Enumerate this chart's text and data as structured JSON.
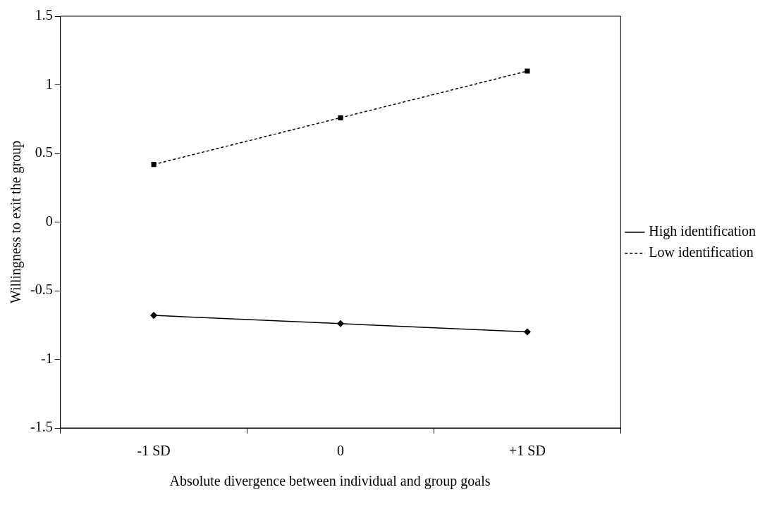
{
  "chart_data": {
    "type": "line",
    "xlabel": "Absolute divergence between individual and group goals",
    "ylabel": "Willingness to exit the group",
    "categories": [
      "-1 SD",
      "0",
      "+1 SD"
    ],
    "series": [
      {
        "name": "High identification",
        "color": "#000000",
        "values": [
          -0.68,
          -0.74,
          -0.8
        ],
        "marker": "diamond",
        "line_style": "solid"
      },
      {
        "name": "Low identification",
        "color": "#000000",
        "values": [
          0.42,
          0.76,
          1.1
        ],
        "marker": "square",
        "line_style": "dashed"
      }
    ],
    "ylim": [
      -1.5,
      1.5
    ],
    "yticks": [
      -1.5,
      -1,
      -0.5,
      0,
      0.5,
      1,
      1.5
    ],
    "grid": false,
    "legend": "right"
  }
}
